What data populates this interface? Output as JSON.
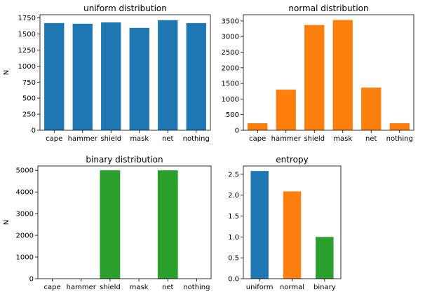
{
  "colors": {
    "blue": "#1f77b4",
    "orange": "#ff7f0e",
    "green": "#2ca02c"
  },
  "chart_data": [
    {
      "type": "bar",
      "title": "uniform distribution",
      "xlabel": "",
      "ylabel": "N",
      "categories": [
        "cape",
        "hammer",
        "shield",
        "mask",
        "net",
        "nothing"
      ],
      "values": [
        1670,
        1660,
        1680,
        1595,
        1715,
        1670
      ],
      "ylim": [
        0,
        1800
      ],
      "yticks": [
        0,
        250,
        500,
        750,
        1000,
        1250,
        1500,
        1750
      ],
      "color": "#1f77b4",
      "grid": false
    },
    {
      "type": "bar",
      "title": "normal distribution",
      "xlabel": "",
      "ylabel": "",
      "categories": [
        "cape",
        "hammer",
        "shield",
        "mask",
        "net",
        "nothing"
      ],
      "values": [
        225,
        1300,
        3370,
        3530,
        1365,
        225
      ],
      "ylim": [
        0,
        3700
      ],
      "yticks": [
        0,
        500,
        1000,
        1500,
        2000,
        2500,
        3000,
        3500
      ],
      "color": "#ff7f0e",
      "grid": false
    },
    {
      "type": "bar",
      "title": "binary distribution",
      "xlabel": "",
      "ylabel": "N",
      "categories": [
        "cape",
        "hammer",
        "shield",
        "mask",
        "net",
        "nothing"
      ],
      "values": [
        0,
        0,
        5000,
        0,
        5000,
        0
      ],
      "ylim": [
        0,
        5200
      ],
      "yticks": [
        0,
        1000,
        2000,
        3000,
        4000,
        5000
      ],
      "color": "#2ca02c",
      "grid": false
    },
    {
      "type": "bar",
      "title": "entropy",
      "xlabel": "",
      "ylabel": "",
      "categories": [
        "uniform",
        "normal",
        "binary"
      ],
      "values": [
        2.58,
        2.09,
        1.0
      ],
      "ylim": [
        0,
        2.7
      ],
      "yticks": [
        "0.0",
        "0.5",
        "1.0",
        "1.5",
        "2.0",
        "2.5"
      ],
      "colors": [
        "#1f77b4",
        "#ff7f0e",
        "#2ca02c"
      ],
      "grid": false
    }
  ]
}
